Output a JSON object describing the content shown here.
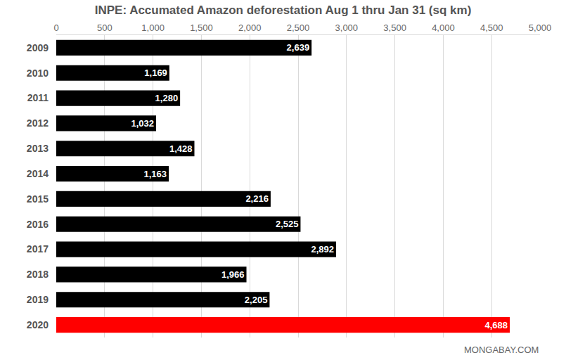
{
  "chart_data": {
    "type": "bar",
    "orientation": "horizontal",
    "title": "INPE: Accumated Amazon deforestation Aug 1 thru Jan 31 (sq km)",
    "categories": [
      "2009",
      "2010",
      "2011",
      "2012",
      "2013",
      "2014",
      "2015",
      "2016",
      "2017",
      "2018",
      "2019",
      "2020"
    ],
    "values": [
      2639,
      1169,
      1280,
      1032,
      1428,
      1163,
      2216,
      2525,
      2892,
      1966,
      2205,
      4688
    ],
    "value_labels": [
      "2,639",
      "1,169",
      "1,280",
      "1,032",
      "1,428",
      "1,163",
      "2,216",
      "2,525",
      "2,892",
      "1,966",
      "2,205",
      "4,688"
    ],
    "colors": [
      "#000000",
      "#000000",
      "#000000",
      "#000000",
      "#000000",
      "#000000",
      "#000000",
      "#000000",
      "#000000",
      "#000000",
      "#000000",
      "#ff0000"
    ],
    "xlim": [
      0,
      5000
    ],
    "xticks": [
      0,
      500,
      {
        "value": 1000,
        "label": "1,000"
      },
      {
        "value": 1500,
        "label": "1,500"
      },
      {
        "value": 2000,
        "label": "2,000"
      },
      {
        "value": 2500,
        "label": "2,500"
      },
      {
        "value": 3000,
        "label": "3,000"
      },
      {
        "value": 3500,
        "label": "3,500"
      },
      {
        "value": 4000,
        "label": "4,000"
      },
      {
        "value": 4500,
        "label": "4,500"
      },
      {
        "value": 5000,
        "label": "5,000"
      }
    ],
    "grid": true,
    "data_labels": true,
    "annotations": [
      "MONGABAY.COM"
    ]
  }
}
